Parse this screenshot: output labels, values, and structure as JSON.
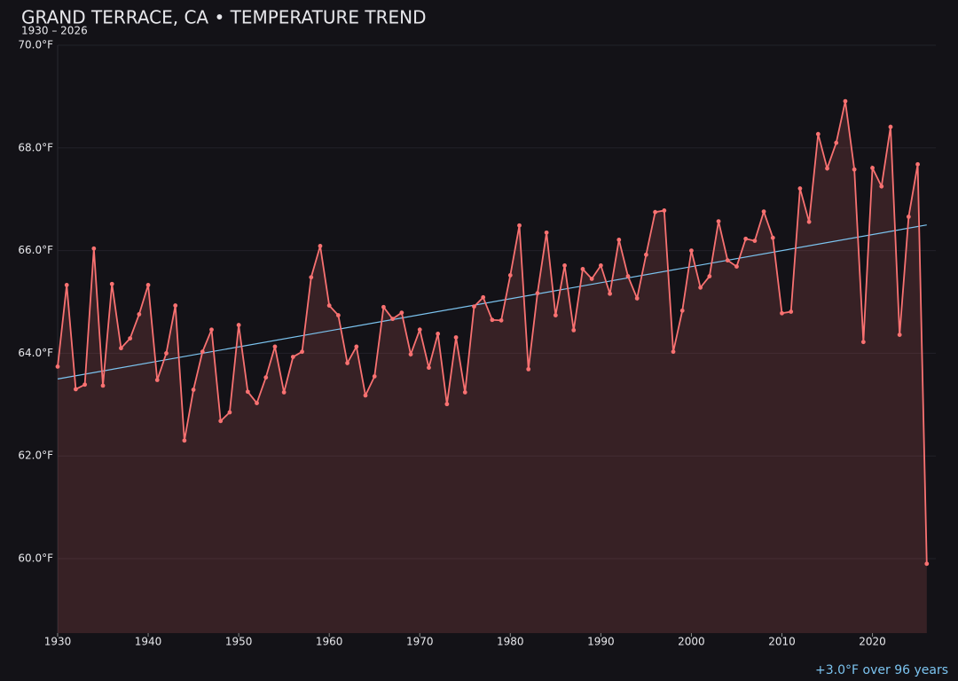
{
  "chart_data": {
    "type": "line",
    "title": "GRAND TERRACE, CA • TEMPERATURE TREND",
    "subtitle": "1930 – 2026",
    "annotation": "+3.0°F over 96 years",
    "color": "#f87171",
    "x": [
      1930,
      1931,
      1932,
      1933,
      1934,
      1935,
      1936,
      1937,
      1938,
      1939,
      1940,
      1941,
      1942,
      1943,
      1944,
      1945,
      1946,
      1947,
      1948,
      1949,
      1950,
      1951,
      1952,
      1953,
      1954,
      1955,
      1956,
      1957,
      1958,
      1959,
      1960,
      1961,
      1962,
      1963,
      1964,
      1965,
      1966,
      1967,
      1968,
      1969,
      1970,
      1971,
      1972,
      1973,
      1974,
      1975,
      1976,
      1977,
      1978,
      1979,
      1980,
      1981,
      1982,
      1983,
      1984,
      1985,
      1986,
      1987,
      1988,
      1989,
      1990,
      1991,
      1992,
      1993,
      1994,
      1995,
      1996,
      1997,
      1998,
      1999,
      2000,
      2001,
      2002,
      2003,
      2004,
      2005,
      2006,
      2007,
      2008,
      2009,
      2010,
      2011,
      2012,
      2013,
      2014,
      2015,
      2016,
      2017,
      2018,
      2019,
      2020,
      2021,
      2022,
      2023,
      2024,
      2025,
      2026
    ],
    "values": [
      63.74,
      65.33,
      63.3,
      63.39,
      66.04,
      63.37,
      65.35,
      64.1,
      64.29,
      64.76,
      65.33,
      63.48,
      64.0,
      64.93,
      62.3,
      63.29,
      64.03,
      64.46,
      62.68,
      62.85,
      64.55,
      63.25,
      63.03,
      63.53,
      64.13,
      63.24,
      63.93,
      64.03,
      65.48,
      66.09,
      64.93,
      64.74,
      63.81,
      64.13,
      63.18,
      63.55,
      64.9,
      64.67,
      64.79,
      63.98,
      64.46,
      63.72,
      64.38,
      63.01,
      64.31,
      63.24,
      64.91,
      65.09,
      64.65,
      64.64,
      65.52,
      66.49,
      63.69,
      65.17,
      66.35,
      64.74,
      65.71,
      64.45,
      65.64,
      65.45,
      65.71,
      65.16,
      66.21,
      65.5,
      65.07,
      65.92,
      66.75,
      66.78,
      64.03,
      64.83,
      66.0,
      65.28,
      65.5,
      66.57,
      65.81,
      65.69,
      66.23,
      66.19,
      66.76,
      66.25,
      64.78,
      64.81,
      67.21,
      66.56,
      68.27,
      67.6,
      68.1,
      68.91,
      67.58,
      64.22,
      67.61,
      67.25,
      68.41,
      64.36,
      66.66,
      67.68,
      59.9
    ],
    "trend": {
      "color": "#7cc4f0",
      "x": [
        1930,
        2026
      ],
      "values": [
        63.5,
        66.5
      ]
    },
    "xlim": [
      1930,
      2027
    ],
    "xticks": [
      1930,
      1940,
      1950,
      1960,
      1970,
      1980,
      1990,
      2000,
      2010,
      2020
    ],
    "ylim": [
      58.55,
      70
    ],
    "yticks": [
      {
        "value": 60,
        "label": "60.0°F"
      },
      {
        "value": 62,
        "label": "62.0°F"
      },
      {
        "value": 64,
        "label": "64.0°F"
      },
      {
        "value": 66,
        "label": "66.0°F"
      },
      {
        "value": 68,
        "label": "68.0°F"
      },
      {
        "value": 70,
        "label": "70.0°F"
      }
    ],
    "grid": true
  }
}
